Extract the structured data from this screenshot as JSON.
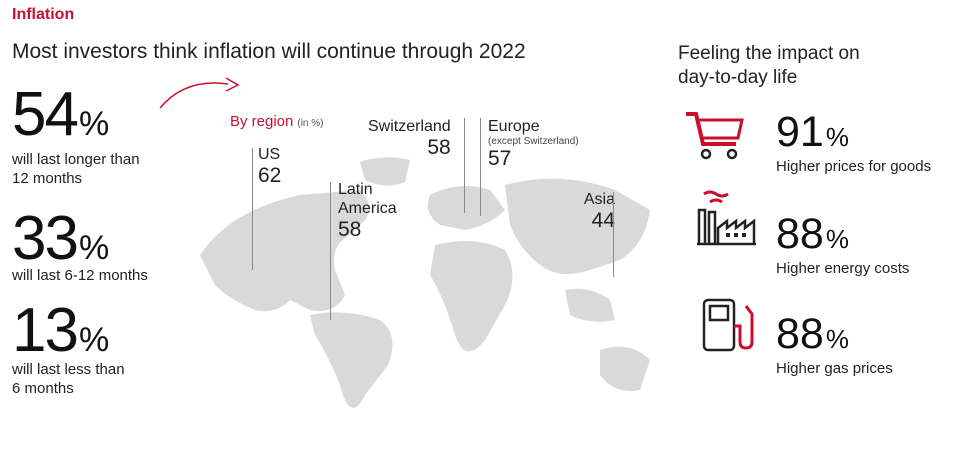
{
  "section_label": "Inflation",
  "headline": "Most investors think inflation will continue through 2022",
  "stats": [
    {
      "value": "54",
      "unit": "%",
      "text_line1": "will last longer than",
      "text_line2": "12 months"
    },
    {
      "value": "33",
      "unit": "%",
      "text_line1": "will last 6-12 months",
      "text_line2": ""
    },
    {
      "value": "13",
      "unit": "%",
      "text_line1": "will last less than",
      "text_line2": "6 months"
    }
  ],
  "by_region": {
    "label": "By region",
    "unit": "(in %)"
  },
  "regions": [
    {
      "name": "US",
      "value": "62"
    },
    {
      "name": "Latin",
      "name2": "America",
      "value": "58"
    },
    {
      "name": "Switzerland",
      "value": "58"
    },
    {
      "name": "Europe",
      "sub": "(except Switzerland)",
      "value": "57"
    },
    {
      "name": "Asia",
      "value": "44"
    }
  ],
  "impact": {
    "title_line1": "Feeling the impact on",
    "title_line2": "day-to-day life",
    "items": [
      {
        "icon": "shopping-cart-icon",
        "value": "91",
        "unit": "%",
        "label": "Higher prices for goods"
      },
      {
        "icon": "factory-icon",
        "value": "88",
        "unit": "%",
        "label": "Higher energy costs"
      },
      {
        "icon": "gas-pump-icon",
        "value": "88",
        "unit": "%",
        "label": "Higher gas prices"
      }
    ]
  },
  "colors": {
    "accent": "#c8102e",
    "map": "#d9d9d9",
    "text": "#222222"
  }
}
